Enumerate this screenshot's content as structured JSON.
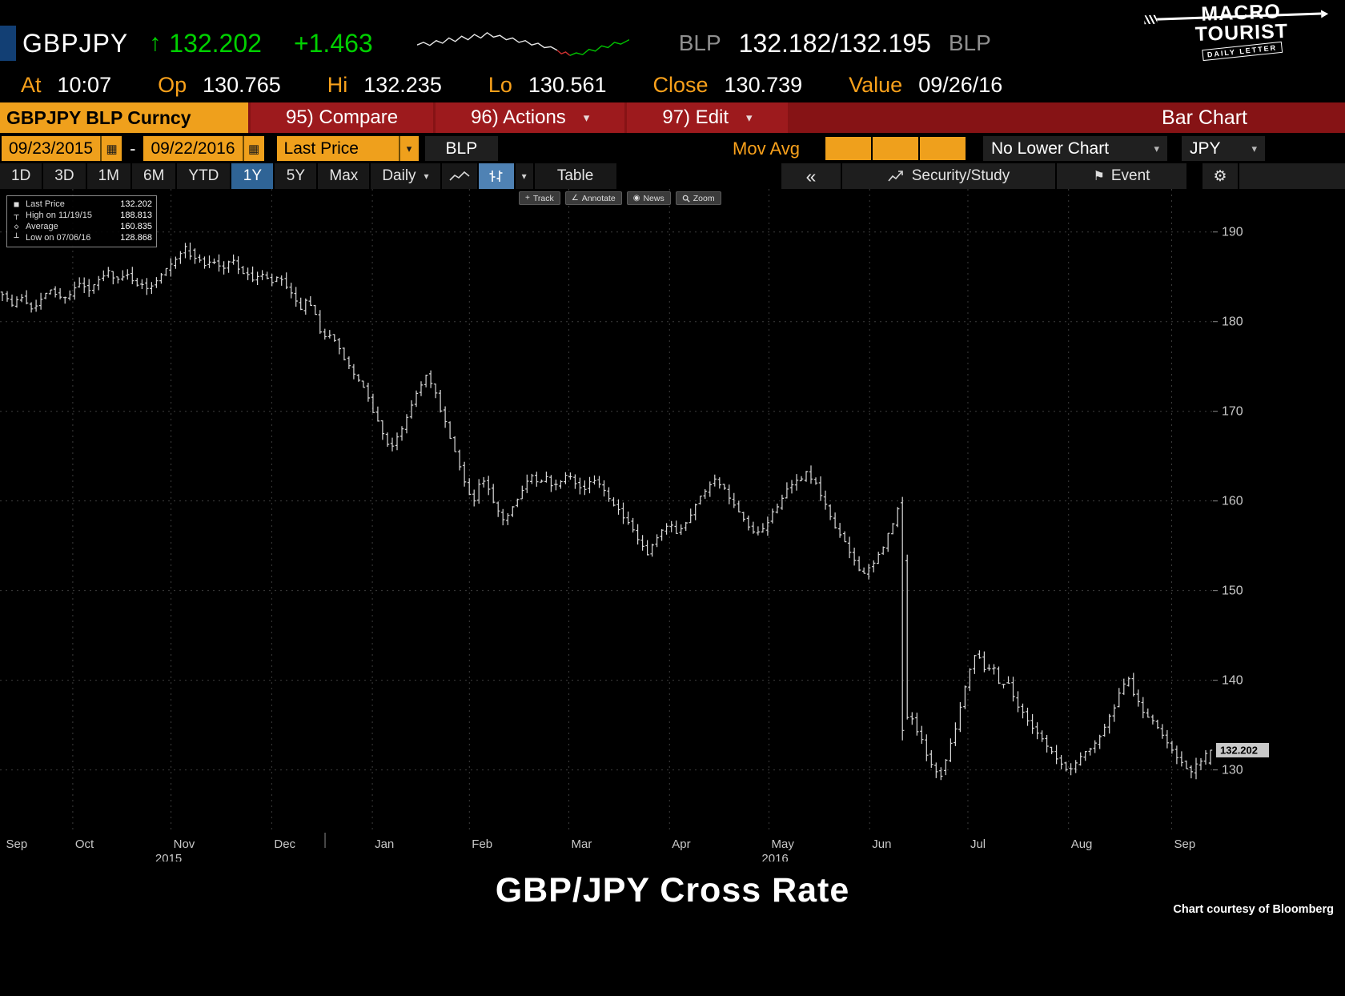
{
  "header": {
    "ticker": "GBPJPY",
    "arrow": "↑",
    "last": "132.202",
    "change": "+1.463",
    "bid_label": "BLP",
    "bid_ask": "132.182/132.195",
    "ask_label": "BLP",
    "logo": {
      "line1": "MACRO",
      "line2": "TOURIST",
      "sub": "DAILY LETTER"
    },
    "stats": [
      {
        "label": "At",
        "value": "10:07"
      },
      {
        "label": "Op",
        "value": "130.765"
      },
      {
        "label": "Hi",
        "value": "132.235"
      },
      {
        "label": "Lo",
        "value": "130.561"
      },
      {
        "label": "Close",
        "value": "130.739"
      },
      {
        "label": "Value",
        "value": "09/26/16"
      }
    ]
  },
  "menubar": {
    "security": "GBPJPY BLP Curncy",
    "items": [
      {
        "label": "95) Compare",
        "dropdown": false
      },
      {
        "label": "96) Actions",
        "dropdown": true
      },
      {
        "label": "97) Edit",
        "dropdown": true
      }
    ],
    "right_label": "Bar Chart"
  },
  "controls": {
    "date_from": "09/23/2015",
    "date_sep": "-",
    "date_to": "09/22/2016",
    "price_field": "Last Price",
    "source": "BLP",
    "mov_avg_label": "Mov Avg",
    "mav_inputs": [
      "",
      "",
      ""
    ],
    "lower_chart": "No Lower Chart",
    "currency": "JPY"
  },
  "tabs": {
    "periods": [
      "1D",
      "3D",
      "1M",
      "6M",
      "YTD",
      "1Y",
      "5Y",
      "Max"
    ],
    "active_period": "1Y",
    "frequency": "Daily",
    "table_label": "Table",
    "collapse_label": "«",
    "security_study": "Security/Study",
    "event": "Event"
  },
  "chart_tools": [
    "Track",
    "Annotate",
    "News",
    "Zoom"
  ],
  "legend": {
    "rows": [
      {
        "marker": "■",
        "label": "Last Price",
        "value": "132.202"
      },
      {
        "marker": "┬",
        "label": "High on 11/19/15",
        "value": "188.813"
      },
      {
        "marker": "◇",
        "label": "Average",
        "value": "160.835"
      },
      {
        "marker": "┴",
        "label": "Low on 07/06/16",
        "value": "128.868"
      }
    ]
  },
  "chart_data": {
    "type": "ohlc-bar",
    "title": "GBP/JPY Cross Rate",
    "ylim": [
      123.0,
      194.8
    ],
    "yticks": [
      130,
      140,
      150,
      160,
      170,
      180,
      190
    ],
    "bars": 252,
    "price_axis_label": "132.202",
    "x_months": [
      {
        "label": "Sep",
        "t": 0.003
      },
      {
        "label": "Oct",
        "t": 0.06
      },
      {
        "label": "Nov",
        "t": 0.141
      },
      {
        "label": "Dec",
        "t": 0.224
      },
      {
        "label": "Jan",
        "t": 0.307
      },
      {
        "label": "Feb",
        "t": 0.387
      },
      {
        "label": "Mar",
        "t": 0.469
      },
      {
        "label": "Apr",
        "t": 0.552
      },
      {
        "label": "May",
        "t": 0.634
      },
      {
        "label": "Jun",
        "t": 0.717
      },
      {
        "label": "Jul",
        "t": 0.798
      },
      {
        "label": "Aug",
        "t": 0.881
      },
      {
        "label": "Sep",
        "t": 0.966
      }
    ],
    "years": [
      {
        "label": "2015",
        "t": 0.128
      },
      {
        "label": "2016",
        "t": 0.628
      }
    ],
    "year_divider_t": 0.268,
    "keyframes": [
      [
        0.0,
        183.3
      ],
      [
        0.008,
        181.8
      ],
      [
        0.016,
        182.8
      ],
      [
        0.024,
        181.6
      ],
      [
        0.032,
        182.4
      ],
      [
        0.04,
        183.6
      ],
      [
        0.048,
        182.6
      ],
      [
        0.056,
        183.2
      ],
      [
        0.064,
        184.2
      ],
      [
        0.072,
        183.4
      ],
      [
        0.08,
        184.6
      ],
      [
        0.088,
        185.6
      ],
      [
        0.096,
        184.6
      ],
      [
        0.104,
        185.2
      ],
      [
        0.112,
        184.2
      ],
      [
        0.12,
        183.6
      ],
      [
        0.128,
        184.8
      ],
      [
        0.136,
        186.2
      ],
      [
        0.144,
        187.2
      ],
      [
        0.152,
        188.3
      ],
      [
        0.158,
        187.5
      ],
      [
        0.166,
        186.3
      ],
      [
        0.174,
        186.9
      ],
      [
        0.182,
        185.8
      ],
      [
        0.19,
        187.0
      ],
      [
        0.198,
        185.6
      ],
      [
        0.206,
        184.7
      ],
      [
        0.214,
        185.3
      ],
      [
        0.222,
        184.3
      ],
      [
        0.23,
        184.9
      ],
      [
        0.238,
        183.2
      ],
      [
        0.246,
        181.4
      ],
      [
        0.252,
        182.3
      ],
      [
        0.258,
        181.0
      ],
      [
        0.264,
        178.2
      ],
      [
        0.27,
        178.9
      ],
      [
        0.277,
        177.2
      ],
      [
        0.284,
        175.6
      ],
      [
        0.291,
        174.1
      ],
      [
        0.298,
        172.7
      ],
      [
        0.305,
        170.6
      ],
      [
        0.312,
        168.4
      ],
      [
        0.318,
        166.6
      ],
      [
        0.323,
        165.9
      ],
      [
        0.329,
        167.6
      ],
      [
        0.336,
        169.9
      ],
      [
        0.343,
        172.1
      ],
      [
        0.35,
        174.1
      ],
      [
        0.357,
        172.4
      ],
      [
        0.364,
        169.6
      ],
      [
        0.371,
        166.8
      ],
      [
        0.378,
        163.9
      ],
      [
        0.385,
        161.3
      ],
      [
        0.391,
        159.9
      ],
      [
        0.396,
        162.7
      ],
      [
        0.402,
        161.3
      ],
      [
        0.408,
        159.2
      ],
      [
        0.414,
        157.7
      ],
      [
        0.42,
        158.9
      ],
      [
        0.426,
        160.3
      ],
      [
        0.432,
        161.9
      ],
      [
        0.438,
        162.7
      ],
      [
        0.444,
        161.7
      ],
      [
        0.45,
        162.9
      ],
      [
        0.456,
        161.5
      ],
      [
        0.462,
        162.3
      ],
      [
        0.468,
        163.4
      ],
      [
        0.474,
        162.2
      ],
      [
        0.48,
        161.1
      ],
      [
        0.486,
        161.9
      ],
      [
        0.492,
        162.6
      ],
      [
        0.498,
        161.2
      ],
      [
        0.504,
        160.2
      ],
      [
        0.51,
        158.9
      ],
      [
        0.516,
        157.7
      ],
      [
        0.522,
        156.6
      ],
      [
        0.528,
        155.2
      ],
      [
        0.534,
        153.9
      ],
      [
        0.54,
        155.4
      ],
      [
        0.546,
        156.5
      ],
      [
        0.552,
        157.5
      ],
      [
        0.558,
        156.5
      ],
      [
        0.564,
        157.3
      ],
      [
        0.57,
        158.7
      ],
      [
        0.576,
        160.1
      ],
      [
        0.582,
        161.3
      ],
      [
        0.588,
        162.5
      ],
      [
        0.594,
        162.0
      ],
      [
        0.6,
        160.7
      ],
      [
        0.606,
        159.3
      ],
      [
        0.612,
        158.1
      ],
      [
        0.618,
        156.9
      ],
      [
        0.624,
        156.1
      ],
      [
        0.63,
        156.9
      ],
      [
        0.636,
        158.3
      ],
      [
        0.642,
        159.7
      ],
      [
        0.648,
        160.9
      ],
      [
        0.654,
        161.7
      ],
      [
        0.66,
        162.5
      ],
      [
        0.666,
        163.2
      ],
      [
        0.672,
        162.1
      ],
      [
        0.678,
        160.4
      ],
      [
        0.684,
        158.6
      ],
      [
        0.69,
        157.0
      ],
      [
        0.696,
        155.5
      ],
      [
        0.702,
        154.1
      ],
      [
        0.708,
        152.7
      ],
      [
        0.714,
        151.8
      ],
      [
        0.72,
        152.7
      ],
      [
        0.726,
        154.1
      ],
      [
        0.732,
        155.9
      ],
      [
        0.738,
        157.7
      ],
      [
        0.742,
        159.4
      ],
      [
        0.7445,
        159.9
      ],
      [
        0.7465,
        134.6
      ],
      [
        0.75,
        136.6
      ],
      [
        0.754,
        135.4
      ],
      [
        0.758,
        134.0
      ],
      [
        0.762,
        132.8
      ],
      [
        0.766,
        131.6
      ],
      [
        0.77,
        130.4
      ],
      [
        0.7755,
        129.4
      ],
      [
        0.779,
        130.6
      ],
      [
        0.783,
        132.1
      ],
      [
        0.787,
        133.9
      ],
      [
        0.791,
        135.9
      ],
      [
        0.795,
        138.2
      ],
      [
        0.799,
        140.6
      ],
      [
        0.803,
        142.4
      ],
      [
        0.807,
        143.4
      ],
      [
        0.811,
        141.8
      ],
      [
        0.815,
        140.8
      ],
      [
        0.819,
        142.0
      ],
      [
        0.823,
        140.4
      ],
      [
        0.827,
        139.2
      ],
      [
        0.831,
        140.2
      ],
      [
        0.835,
        138.8
      ],
      [
        0.839,
        137.6
      ],
      [
        0.843,
        136.6
      ],
      [
        0.848,
        135.6
      ],
      [
        0.853,
        134.8
      ],
      [
        0.858,
        134.0
      ],
      [
        0.863,
        133.0
      ],
      [
        0.868,
        132.1
      ],
      [
        0.873,
        131.1
      ],
      [
        0.878,
        130.3
      ],
      [
        0.883,
        129.8
      ],
      [
        0.888,
        130.8
      ],
      [
        0.893,
        131.6
      ],
      [
        0.898,
        132.2
      ],
      [
        0.903,
        132.9
      ],
      [
        0.908,
        133.7
      ],
      [
        0.913,
        134.9
      ],
      [
        0.918,
        136.3
      ],
      [
        0.923,
        137.9
      ],
      [
        0.928,
        139.4
      ],
      [
        0.932,
        140.1
      ],
      [
        0.936,
        138.7
      ],
      [
        0.94,
        137.5
      ],
      [
        0.944,
        136.5
      ],
      [
        0.948,
        136.0
      ],
      [
        0.952,
        135.3
      ],
      [
        0.956,
        134.6
      ],
      [
        0.96,
        134.0
      ],
      [
        0.964,
        133.2
      ],
      [
        0.968,
        132.4
      ],
      [
        0.972,
        131.6
      ],
      [
        0.976,
        130.8
      ],
      [
        0.98,
        130.0
      ],
      [
        0.984,
        129.7
      ],
      [
        0.988,
        130.4
      ],
      [
        0.992,
        131.2
      ],
      [
        0.996,
        131.8
      ],
      [
        1.0,
        132.1
      ]
    ],
    "markers": {
      "high": {
        "t": 0.155,
        "value": 188.813
      },
      "low": {
        "t": 0.7755,
        "value": 128.868
      },
      "crash": {
        "t": 0.7445,
        "open": 159.8,
        "high": 160.45,
        "low": 133.3,
        "close": 134.4
      },
      "last": {
        "open": 130.765,
        "high": 132.235,
        "low": 130.561,
        "close": 132.202
      }
    },
    "sparkline": {
      "white": [
        [
          0,
          46
        ],
        [
          3,
          40
        ],
        [
          6,
          47
        ],
        [
          9,
          36
        ],
        [
          12,
          42
        ],
        [
          15,
          30
        ],
        [
          18,
          38
        ],
        [
          21,
          26
        ],
        [
          24,
          34
        ],
        [
          27,
          22
        ],
        [
          30,
          30
        ],
        [
          33,
          18
        ],
        [
          36,
          28
        ],
        [
          39,
          24
        ],
        [
          42,
          34
        ],
        [
          45,
          30
        ],
        [
          48,
          40
        ],
        [
          51,
          36
        ],
        [
          54,
          46
        ],
        [
          57,
          42
        ],
        [
          60,
          52
        ],
        [
          63,
          50
        ],
        [
          66,
          58
        ]
      ],
      "red": [
        [
          66,
          58
        ],
        [
          68,
          66
        ],
        [
          70,
          62
        ],
        [
          72,
          70
        ]
      ],
      "green": [
        [
          72,
          70
        ],
        [
          75,
          64
        ],
        [
          78,
          68
        ],
        [
          81,
          56
        ],
        [
          84,
          60
        ],
        [
          87,
          48
        ],
        [
          90,
          52
        ],
        [
          93,
          40
        ],
        [
          96,
          44
        ],
        [
          100,
          34
        ]
      ]
    }
  },
  "footer": {
    "title": "GBP/JPY Cross Rate",
    "courtesy": "Chart courtesy of Bloomberg"
  }
}
